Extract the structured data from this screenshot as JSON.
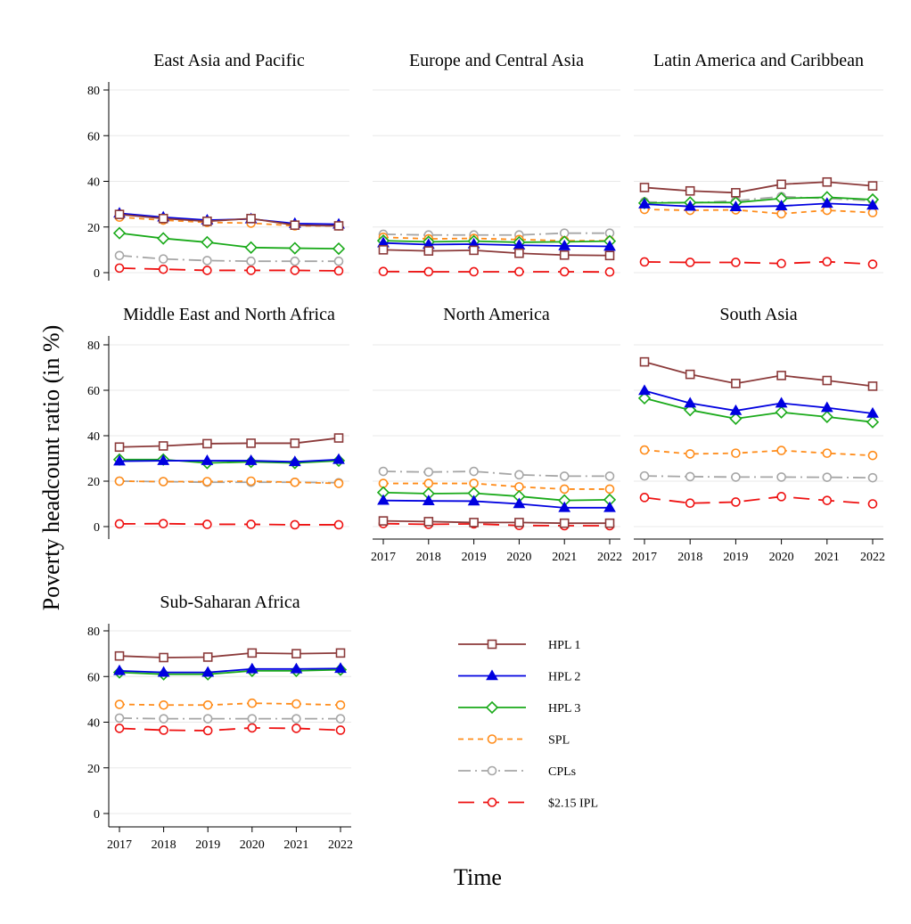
{
  "figure": {
    "ylabel": "Poverty headcount ratio (in %)",
    "xlabel": "Time"
  },
  "legend": [
    {
      "series": "HPL 1",
      "label": "HPL 1"
    },
    {
      "series": "HPL 2",
      "label": "HPL 2"
    },
    {
      "series": "HPL 3",
      "label": "HPL 3"
    },
    {
      "series": "SPL",
      "label": "SPL"
    },
    {
      "series": "CPLs",
      "label": "CPLs"
    },
    {
      "series": "$2.15 IPL",
      "label": "$2.15 IPL"
    }
  ],
  "series_styles": {
    "HPL 1": {
      "color": "#8b3a3a",
      "marker": "square",
      "dash": "solid"
    },
    "HPL 2": {
      "color": "#0000e0",
      "marker": "triangle",
      "dash": "solid"
    },
    "HPL 3": {
      "color": "#1aaa1a",
      "marker": "diamond",
      "dash": "solid"
    },
    "SPL": {
      "color": "#ff8c1a",
      "marker": "circle",
      "dash": "short-dash"
    },
    "CPLs": {
      "color": "#a6a6a6",
      "marker": "circle",
      "dash": "dash-dot"
    },
    "$2.15 IPL": {
      "color": "#ee1111",
      "marker": "circle",
      "dash": "long-dash"
    }
  },
  "chart_data": [
    {
      "type": "line",
      "title": "East Asia and Pacific",
      "x": [
        2017,
        2018,
        2019,
        2020,
        2021,
        2022
      ],
      "ylim": [
        0,
        85
      ],
      "yticks": [
        0,
        20,
        40,
        60,
        80
      ],
      "grid": true,
      "show_y_ticks": true,
      "show_x_ticks": false,
      "series": [
        {
          "name": "HPL 1",
          "values": [
            25.5,
            23.7,
            22.5,
            23.7,
            20.8,
            20.5
          ]
        },
        {
          "name": "HPL 2",
          "values": [
            26.0,
            24.3,
            23.0,
            23.5,
            21.5,
            21.2
          ]
        },
        {
          "name": "HPL 3",
          "values": [
            17.3,
            15.0,
            13.3,
            11.0,
            10.7,
            10.5
          ]
        },
        {
          "name": "SPL",
          "values": [
            24.3,
            23.0,
            22.0,
            21.7,
            20.5,
            20.5
          ]
        },
        {
          "name": "CPLs",
          "values": [
            7.5,
            6.0,
            5.3,
            5.0,
            5.0,
            5.0
          ]
        },
        {
          "name": "$2.15 IPL",
          "values": [
            2.0,
            1.5,
            1.0,
            1.0,
            1.0,
            0.8
          ]
        }
      ]
    },
    {
      "type": "line",
      "title": "Europe and Central Asia",
      "x": [
        2017,
        2018,
        2019,
        2020,
        2021,
        2022
      ],
      "ylim": [
        0,
        85
      ],
      "yticks": [
        0,
        20,
        40,
        60,
        80
      ],
      "grid": true,
      "show_y_ticks": false,
      "show_x_ticks": false,
      "series": [
        {
          "name": "HPL 1",
          "values": [
            10.0,
            9.5,
            9.8,
            8.5,
            7.7,
            7.5
          ]
        },
        {
          "name": "HPL 2",
          "values": [
            13.0,
            12.3,
            12.5,
            12.0,
            11.7,
            11.5
          ]
        },
        {
          "name": "HPL 3",
          "values": [
            14.0,
            13.5,
            13.8,
            13.3,
            13.5,
            13.8
          ]
        },
        {
          "name": "SPL",
          "values": [
            15.5,
            14.8,
            15.0,
            14.5,
            14.0,
            14.0
          ]
        },
        {
          "name": "CPLs",
          "values": [
            16.8,
            16.5,
            16.5,
            16.5,
            17.3,
            17.3
          ]
        },
        {
          "name": "$2.15 IPL",
          "values": [
            0.5,
            0.4,
            0.4,
            0.4,
            0.4,
            0.3
          ]
        }
      ]
    },
    {
      "type": "line",
      "title": "Latin America and Caribbean",
      "x": [
        2017,
        2018,
        2019,
        2020,
        2021,
        2022
      ],
      "ylim": [
        0,
        85
      ],
      "yticks": [
        0,
        20,
        40,
        60,
        80
      ],
      "grid": true,
      "show_y_ticks": false,
      "show_x_ticks": false,
      "series": [
        {
          "name": "HPL 1",
          "values": [
            37.3,
            35.8,
            35.0,
            38.7,
            39.7,
            38.0
          ]
        },
        {
          "name": "HPL 2",
          "values": [
            30.0,
            29.0,
            28.8,
            29.2,
            30.3,
            29.5
          ]
        },
        {
          "name": "HPL 3",
          "values": [
            30.5,
            30.7,
            30.7,
            32.5,
            33.0,
            32.0
          ]
        },
        {
          "name": "SPL",
          "values": [
            27.7,
            27.3,
            27.5,
            25.8,
            27.3,
            26.3
          ]
        },
        {
          "name": "CPLs",
          "values": [
            31.0,
            30.5,
            31.5,
            33.3,
            32.5,
            31.5
          ]
        },
        {
          "name": "$2.15 IPL",
          "values": [
            4.7,
            4.5,
            4.5,
            4.0,
            4.8,
            3.7
          ]
        }
      ]
    },
    {
      "type": "line",
      "title": "Middle East and North Africa",
      "x": [
        2017,
        2018,
        2019,
        2020,
        2021,
        2022
      ],
      "ylim": [
        0,
        85
      ],
      "yticks": [
        0,
        20,
        40,
        60,
        80
      ],
      "grid": true,
      "show_y_ticks": true,
      "show_x_ticks": false,
      "series": [
        {
          "name": "HPL 1",
          "values": [
            35.0,
            35.5,
            36.5,
            36.7,
            36.7,
            39.0
          ]
        },
        {
          "name": "HPL 2",
          "values": [
            28.8,
            29.0,
            29.0,
            29.0,
            28.5,
            29.5
          ]
        },
        {
          "name": "HPL 3",
          "values": [
            29.5,
            29.5,
            28.0,
            28.5,
            28.0,
            29.0
          ]
        },
        {
          "name": "SPL",
          "values": [
            20.0,
            19.8,
            19.8,
            20.0,
            19.5,
            19.0
          ]
        },
        {
          "name": "CPLs",
          "values": [
            20.0,
            19.8,
            19.5,
            19.5,
            19.5,
            19.3
          ]
        },
        {
          "name": "$2.15 IPL",
          "values": [
            1.2,
            1.3,
            1.0,
            1.0,
            0.8,
            0.8
          ]
        }
      ]
    },
    {
      "type": "line",
      "title": "North America",
      "x": [
        2017,
        2018,
        2019,
        2020,
        2021,
        2022
      ],
      "ylim": [
        0,
        85
      ],
      "yticks": [
        0,
        20,
        40,
        60,
        80
      ],
      "grid": true,
      "show_y_ticks": false,
      "show_x_ticks": true,
      "series": [
        {
          "name": "HPL 1",
          "values": [
            2.5,
            2.2,
            1.8,
            1.8,
            1.5,
            1.5
          ]
        },
        {
          "name": "HPL 2",
          "values": [
            11.5,
            11.3,
            11.2,
            10.0,
            8.3,
            8.3
          ]
        },
        {
          "name": "HPL 3",
          "values": [
            15.0,
            14.5,
            14.7,
            13.3,
            11.5,
            11.8
          ]
        },
        {
          "name": "SPL",
          "values": [
            19.0,
            19.0,
            19.0,
            17.5,
            16.5,
            16.5
          ]
        },
        {
          "name": "CPLs",
          "values": [
            24.3,
            24.0,
            24.3,
            22.8,
            22.2,
            22.2
          ]
        },
        {
          "name": "$2.15 IPL",
          "values": [
            1.3,
            1.0,
            1.2,
            0.5,
            0.4,
            0.4
          ]
        }
      ]
    },
    {
      "type": "line",
      "title": "South Asia",
      "x": [
        2017,
        2018,
        2019,
        2020,
        2021,
        2022
      ],
      "ylim": [
        0,
        85
      ],
      "yticks": [
        0,
        20,
        40,
        60,
        80
      ],
      "grid": true,
      "show_y_ticks": false,
      "show_x_ticks": true,
      "series": [
        {
          "name": "HPL 1",
          "values": [
            72.5,
            67.0,
            63.0,
            66.5,
            64.3,
            61.8
          ]
        },
        {
          "name": "HPL 2",
          "values": [
            59.8,
            54.3,
            51.0,
            54.3,
            52.3,
            49.8
          ]
        },
        {
          "name": "HPL 3",
          "values": [
            56.5,
            51.3,
            47.5,
            50.3,
            48.3,
            46.0
          ]
        },
        {
          "name": "SPL",
          "values": [
            33.7,
            32.0,
            32.3,
            33.5,
            32.3,
            31.3
          ]
        },
        {
          "name": "CPLs",
          "values": [
            22.3,
            22.0,
            21.8,
            21.8,
            21.7,
            21.5
          ]
        },
        {
          "name": "$2.15 IPL",
          "values": [
            12.8,
            10.3,
            10.8,
            13.2,
            11.5,
            10.0
          ]
        }
      ]
    },
    {
      "type": "line",
      "title": "Sub-Saharan Africa",
      "x": [
        2017,
        2018,
        2019,
        2020,
        2021,
        2022
      ],
      "ylim": [
        0,
        85
      ],
      "yticks": [
        0,
        20,
        40,
        60,
        80
      ],
      "grid": true,
      "show_y_ticks": true,
      "show_x_ticks": true,
      "series": [
        {
          "name": "HPL 1",
          "values": [
            69.0,
            68.3,
            68.5,
            70.3,
            70.0,
            70.3
          ]
        },
        {
          "name": "HPL 2",
          "values": [
            62.5,
            61.8,
            61.8,
            63.3,
            63.3,
            63.5
          ]
        },
        {
          "name": "HPL 3",
          "values": [
            61.8,
            61.0,
            61.0,
            62.5,
            62.5,
            63.0
          ]
        },
        {
          "name": "SPL",
          "values": [
            47.8,
            47.5,
            47.5,
            48.3,
            48.0,
            47.5
          ]
        },
        {
          "name": "CPLs",
          "values": [
            41.8,
            41.5,
            41.5,
            41.5,
            41.5,
            41.5
          ]
        },
        {
          "name": "$2.15 IPL",
          "values": [
            37.3,
            36.5,
            36.3,
            37.5,
            37.3,
            36.5
          ]
        }
      ]
    }
  ]
}
